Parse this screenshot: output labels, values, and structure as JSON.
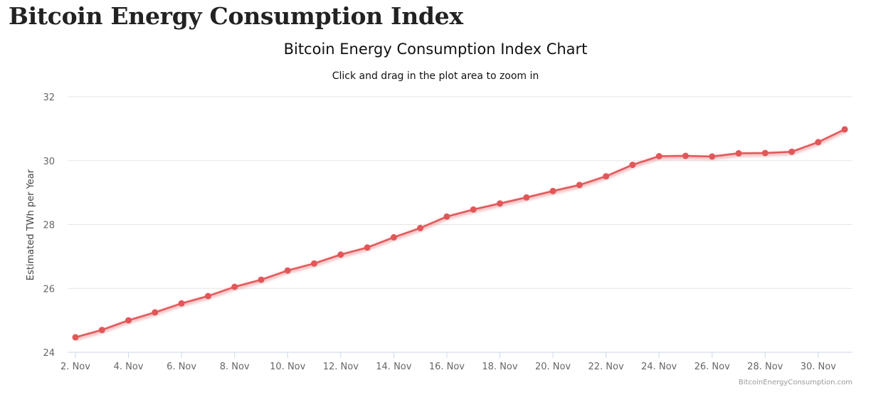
{
  "page": {
    "heading": "Bitcoin Energy Consumption Index"
  },
  "chart_data": {
    "type": "line",
    "title": "Bitcoin Energy Consumption Index Chart",
    "subtitle": "Click and drag in the plot area to zoom in",
    "xlabel": "",
    "ylabel": "Estimated TWh per Year",
    "credits": "BitcoinEnergyConsumption.com",
    "ylim": [
      24,
      32
    ],
    "yticks": [
      24,
      26,
      28,
      30,
      32
    ],
    "xticks": [
      "2. Nov",
      "4. Nov",
      "6. Nov",
      "8. Nov",
      "10. Nov",
      "12. Nov",
      "14. Nov",
      "16. Nov",
      "18. Nov",
      "20. Nov",
      "22. Nov",
      "24. Nov",
      "26. Nov",
      "28. Nov",
      "30. Nov"
    ],
    "x": [
      "2017-11-02",
      "2017-11-03",
      "2017-11-04",
      "2017-11-05",
      "2017-11-06",
      "2017-11-07",
      "2017-11-08",
      "2017-11-09",
      "2017-11-10",
      "2017-11-11",
      "2017-11-12",
      "2017-11-13",
      "2017-11-14",
      "2017-11-15",
      "2017-11-16",
      "2017-11-17",
      "2017-11-18",
      "2017-11-19",
      "2017-11-20",
      "2017-11-21",
      "2017-11-22",
      "2017-11-23",
      "2017-11-24",
      "2017-11-25",
      "2017-11-26",
      "2017-11-27",
      "2017-11-28",
      "2017-11-29",
      "2017-11-30",
      "2017-12-01"
    ],
    "series": [
      {
        "values": [
          24.47,
          24.7,
          25.0,
          25.25,
          25.53,
          25.76,
          26.05,
          26.27,
          26.56,
          26.78,
          27.06,
          27.28,
          27.6,
          27.89,
          28.25,
          28.47,
          28.66,
          28.85,
          29.05,
          29.24,
          29.51,
          29.87,
          30.14,
          30.15,
          30.13,
          30.23,
          30.24,
          30.28,
          30.58,
          30.98
        ],
        "color": "#e15759"
      }
    ],
    "grid": true,
    "legend": "none"
  }
}
